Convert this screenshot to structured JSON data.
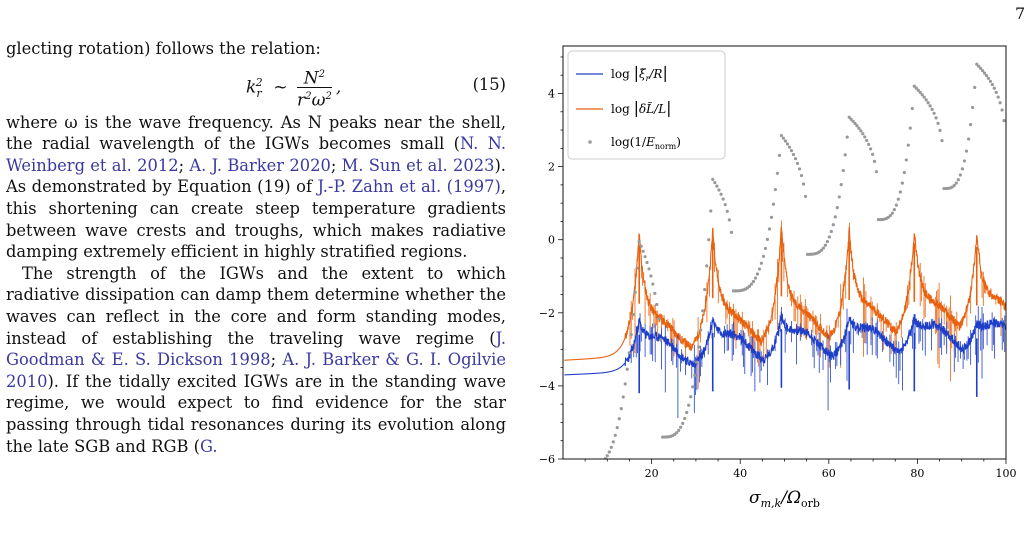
{
  "page_number": "7",
  "text": {
    "line_cont": "glecting rotation) follows the relation:",
    "eq_number": "(15)",
    "p1": [
      {
        "t": "where ω is the wave frequency. As N peaks near the shell, the radial wavelength of the IGWs becomes small ("
      },
      {
        "c": "N. N. Weinberg et al. 2012"
      },
      {
        "t": "; "
      },
      {
        "c": "A. J. Barker 2020"
      },
      {
        "t": "; "
      },
      {
        "c": "M. Sun et al. 2023"
      },
      {
        "t": "). As demonstrated by Equation (19) of "
      },
      {
        "c": "J.-P. Zahn et al. (1997)"
      },
      {
        "t": ", this shortening can create steep temperature gradients between wave crests and troughs, which makes radiative damping extremely efficient in highly stratified regions."
      }
    ],
    "p2": [
      {
        "t": "The strength of the IGWs and the extent to which radiative dissipation can damp them determine whether the waves can reflect in the core and form standing modes, instead of establishing the traveling wave regime ("
      },
      {
        "c": "J. Goodman & E. S. Dickson 1998"
      },
      {
        "t": "; "
      },
      {
        "c": "A. J. Barker & G. I. Ogilvie 2010"
      },
      {
        "t": "). If the tidally excited IGWs are in the standing wave regime, we would expect to find evidence for the star passing through tidal resonances during its evolution along the late SGB and RGB ("
      },
      {
        "c": "G."
      }
    ]
  },
  "chart_data": {
    "type": "line",
    "xlabel": "σ_{m,k}/Ω_orb",
    "xlim": [
      0,
      100
    ],
    "ylim": [
      -6,
      5.3
    ],
    "x_ticks": [
      20,
      40,
      60,
      80,
      100
    ],
    "y_ticks": [
      -6,
      -4,
      -2,
      0,
      2,
      4
    ],
    "grid": false,
    "legend_position": "top-left",
    "resonances": [
      17.2,
      33.8,
      49.3,
      64.6,
      79.3,
      93.4
    ],
    "series": [
      {
        "name": "log |ξ̃_r/R|",
        "color": "#1f3fc8",
        "baseline_left": -3.7,
        "baseline_right": -3.15,
        "peak_tops": [
          -2.6,
          -2.55,
          -2.45,
          -2.5,
          -2.55,
          -2.7
        ]
      },
      {
        "name": "log |δL̃/L|",
        "color": "#e8620f",
        "baseline_left": -3.3,
        "baseline_right": -2.6,
        "peak_tops": [
          -0.15,
          0.0,
          0.05,
          -0.05,
          -0.1,
          -0.2
        ]
      },
      {
        "name": "log(1/E_norm)",
        "color": "#999999",
        "peaks": [
          [
            17.2,
            -0.05
          ],
          [
            33.8,
            1.65
          ],
          [
            49.3,
            2.85
          ],
          [
            64.6,
            3.35
          ],
          [
            79.3,
            4.2
          ],
          [
            93.4,
            4.8
          ]
        ],
        "minima": [
          [
            22.5,
            -5.4
          ],
          [
            38.5,
            -1.4
          ],
          [
            55.2,
            -0.4
          ],
          [
            71.2,
            0.55
          ],
          [
            86,
            1.4
          ]
        ],
        "start": [
          5.5,
          -6.2
        ],
        "end": [
          100,
          1.9
        ]
      }
    ]
  }
}
